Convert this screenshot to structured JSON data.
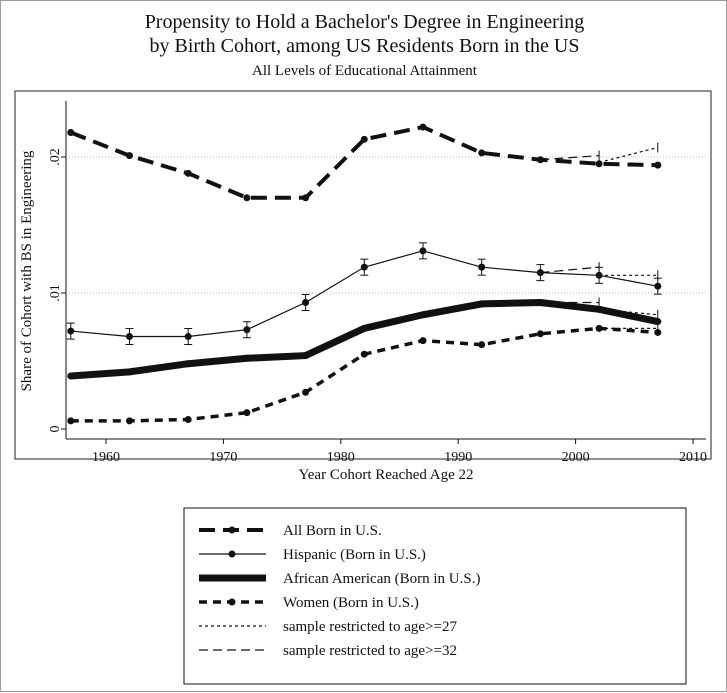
{
  "chart_data": {
    "type": "line",
    "title": "Propensity to Hold a Bachelor's Degree in Engineering",
    "title_line2": "by Birth Cohort, among US Residents Born in the US",
    "subtitle": "All Levels of Educational Attainment",
    "xlabel": "Year Cohort Reached Age 22",
    "ylabel": "Share of Cohort with BS in Engineering",
    "xlim": [
      1953,
      2011
    ],
    "ylim": [
      0,
      0.024
    ],
    "xticks": [
      1960,
      1970,
      1980,
      1990,
      2000,
      2010
    ],
    "xtick_labels": [
      "1960",
      "1970",
      "1980",
      "1990",
      "2000",
      "2010"
    ],
    "yticks": [
      0,
      0.01,
      0.02
    ],
    "ytick_labels": [
      "0",
      ".01",
      ".02"
    ],
    "grid": "horizontal dotted",
    "legend_placement": "bottom",
    "x": [
      1957,
      1962,
      1967,
      1972,
      1977,
      1982,
      1987,
      1992,
      1997,
      2002,
      2007
    ],
    "series": [
      {
        "name": "All Born in U.S.",
        "style": "longdash-thick",
        "values": [
          0.0218,
          0.0201,
          0.0188,
          0.017,
          0.017,
          0.0213,
          0.0222,
          0.0203,
          0.0198,
          0.0195,
          0.0194
        ]
      },
      {
        "name": "Hispanic (Born in U.S.)",
        "style": "solid-thin",
        "errorbars": true,
        "values": [
          0.0072,
          0.0068,
          0.0068,
          0.0073,
          0.0093,
          0.0119,
          0.0131,
          0.0119,
          0.0115,
          0.0113,
          0.0105
        ]
      },
      {
        "name": "African American (Born in U.S.)",
        "style": "solid-thick",
        "values": [
          0.0039,
          0.0042,
          0.0048,
          0.0052,
          0.0054,
          0.0074,
          0.0084,
          0.0092,
          0.0093,
          0.0088,
          0.0079
        ]
      },
      {
        "name": "Women (Born in U.S.)",
        "style": "shortdash-thick",
        "values": [
          0.0006,
          0.0006,
          0.0007,
          0.0012,
          0.0027,
          0.0055,
          0.0065,
          0.0062,
          0.007,
          0.0074,
          0.0071
        ]
      }
    ],
    "restricted": [
      {
        "name": "sample restricted to age>=27",
        "style": "dotted",
        "lines": [
          {
            "x": [
              2002,
              2007
            ],
            "values": [
              0.0196,
              0.0207
            ]
          },
          {
            "x": [
              2002,
              2007
            ],
            "values": [
              0.0113,
              0.0113
            ]
          },
          {
            "x": [
              2002,
              2007
            ],
            "values": [
              0.0088,
              0.0084
            ]
          },
          {
            "x": [
              2002,
              2007
            ],
            "values": [
              0.0074,
              0.0074
            ]
          }
        ]
      },
      {
        "name": "sample restricted to age>=32",
        "style": "dashed",
        "lines": [
          {
            "x": [
              1997,
              2002
            ],
            "values": [
              0.0198,
              0.0201
            ]
          },
          {
            "x": [
              1997,
              2002
            ],
            "values": [
              0.0115,
              0.0119
            ]
          },
          {
            "x": [
              1997,
              2002
            ],
            "values": [
              0.0093,
              0.0093
            ]
          }
        ]
      }
    ]
  }
}
